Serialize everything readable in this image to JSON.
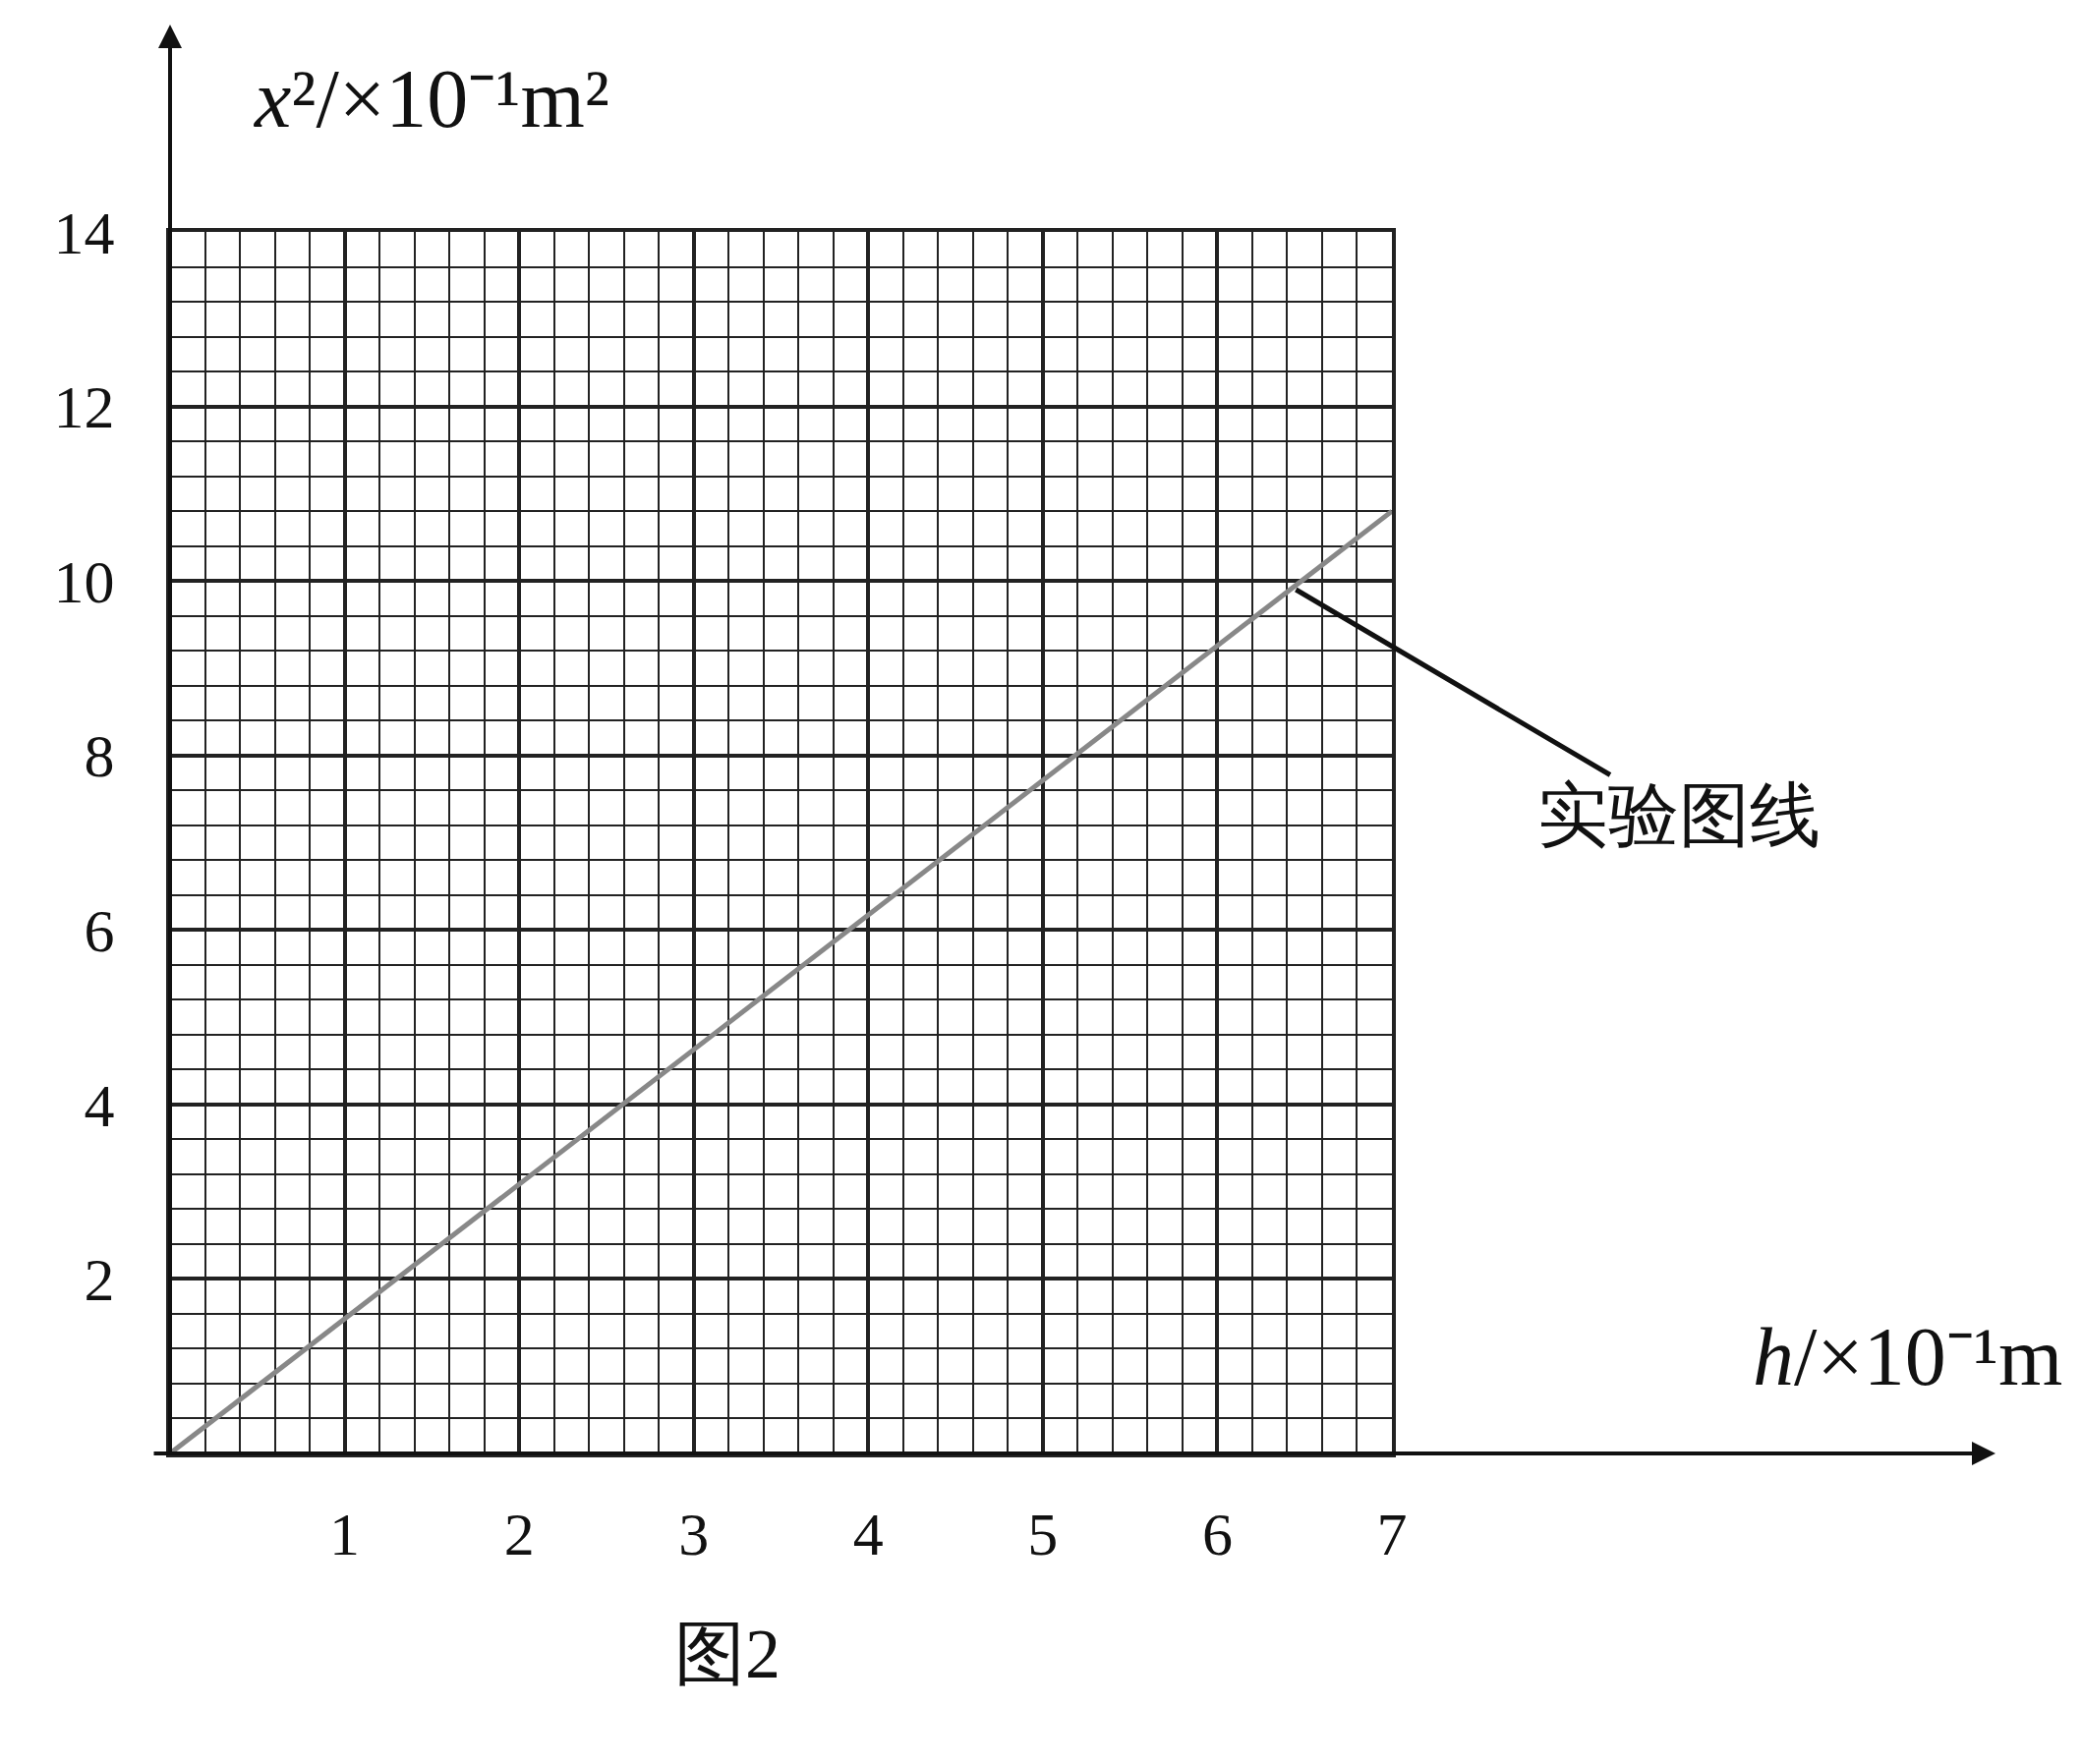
{
  "chart_data": {
    "type": "line",
    "xlabel": "h/×10⁻¹m",
    "ylabel": "x²/×10⁻¹m²",
    "x": [
      0,
      7
    ],
    "series": [
      {
        "color": "#888888",
        "values": [
          0,
          10.8
        ]
      }
    ],
    "xlim": [
      0,
      7
    ],
    "ylim": [
      0,
      14
    ],
    "xticks": [
      1,
      2,
      3,
      4,
      5,
      6,
      7
    ],
    "yticks": [
      2,
      4,
      6,
      8,
      10,
      12,
      14
    ],
    "grid": true,
    "marker": "none",
    "line_style": "solid",
    "annotations": [
      {
        "text": "实验图线",
        "x": 6.45,
        "y": 9.9
      },
      "图2"
    ]
  }
}
